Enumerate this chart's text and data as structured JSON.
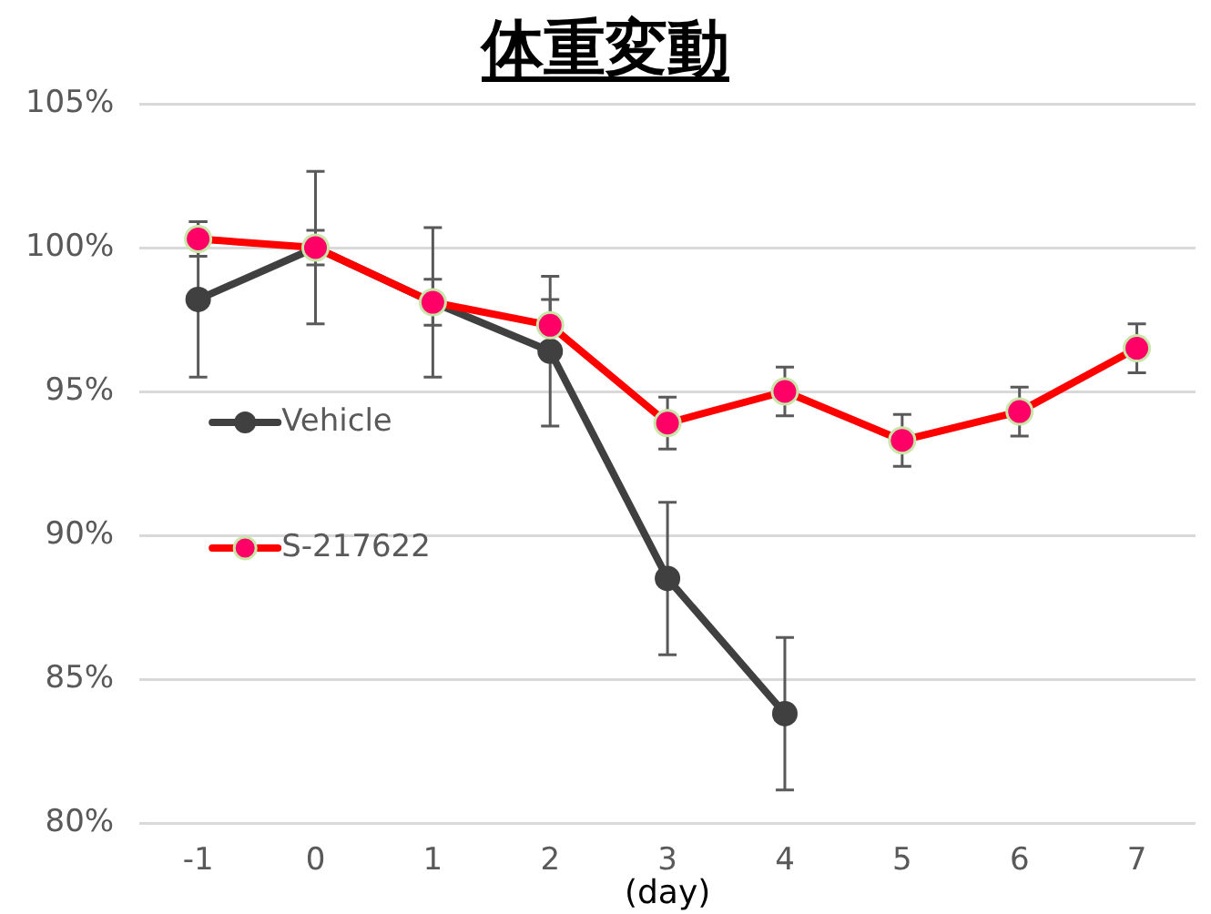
{
  "chart_data": {
    "type": "line",
    "title": "体重変動",
    "xlabel": "(day)",
    "categories": [
      "-1",
      "0",
      "1",
      "2",
      "3",
      "4",
      "5",
      "6",
      "7"
    ],
    "series": [
      {
        "name": "Vehicle",
        "color": "#404040",
        "values": [
          98.2,
          100,
          98.1,
          96.4,
          88.5,
          83.8,
          null,
          null,
          null
        ],
        "errors": [
          2.7,
          2.65,
          2.6,
          2.6,
          2.65,
          2.65,
          null,
          null,
          null
        ]
      },
      {
        "name": "S-217622",
        "color": "#ff0000",
        "colors": [
          "#ff0066",
          "#ff0066",
          "#ff0066",
          "#ff0066",
          "#ff0066",
          "#ff0066",
          "#ff0066",
          "#ff0066",
          "#ff0066"
        ],
        "values": [
          100.3,
          100,
          98.1,
          97.3,
          93.9,
          95.0,
          93.3,
          94.3,
          96.5
        ],
        "errors": [
          0.6,
          0.6,
          0.8,
          0.9,
          0.9,
          0.85,
          0.9,
          0.85,
          0.85
        ]
      }
    ],
    "ylim": [
      80,
      105
    ],
    "yticks": [
      {
        "value": 80,
        "label": "80%"
      },
      {
        "value": 85,
        "label": "85%"
      },
      {
        "value": 90,
        "label": "90%"
      },
      {
        "value": 95,
        "label": "95%"
      },
      {
        "value": 100,
        "label": "100%"
      },
      {
        "value": 105,
        "label": "105%"
      }
    ],
    "grid": "y",
    "legend": "left",
    "marker": "circle"
  }
}
